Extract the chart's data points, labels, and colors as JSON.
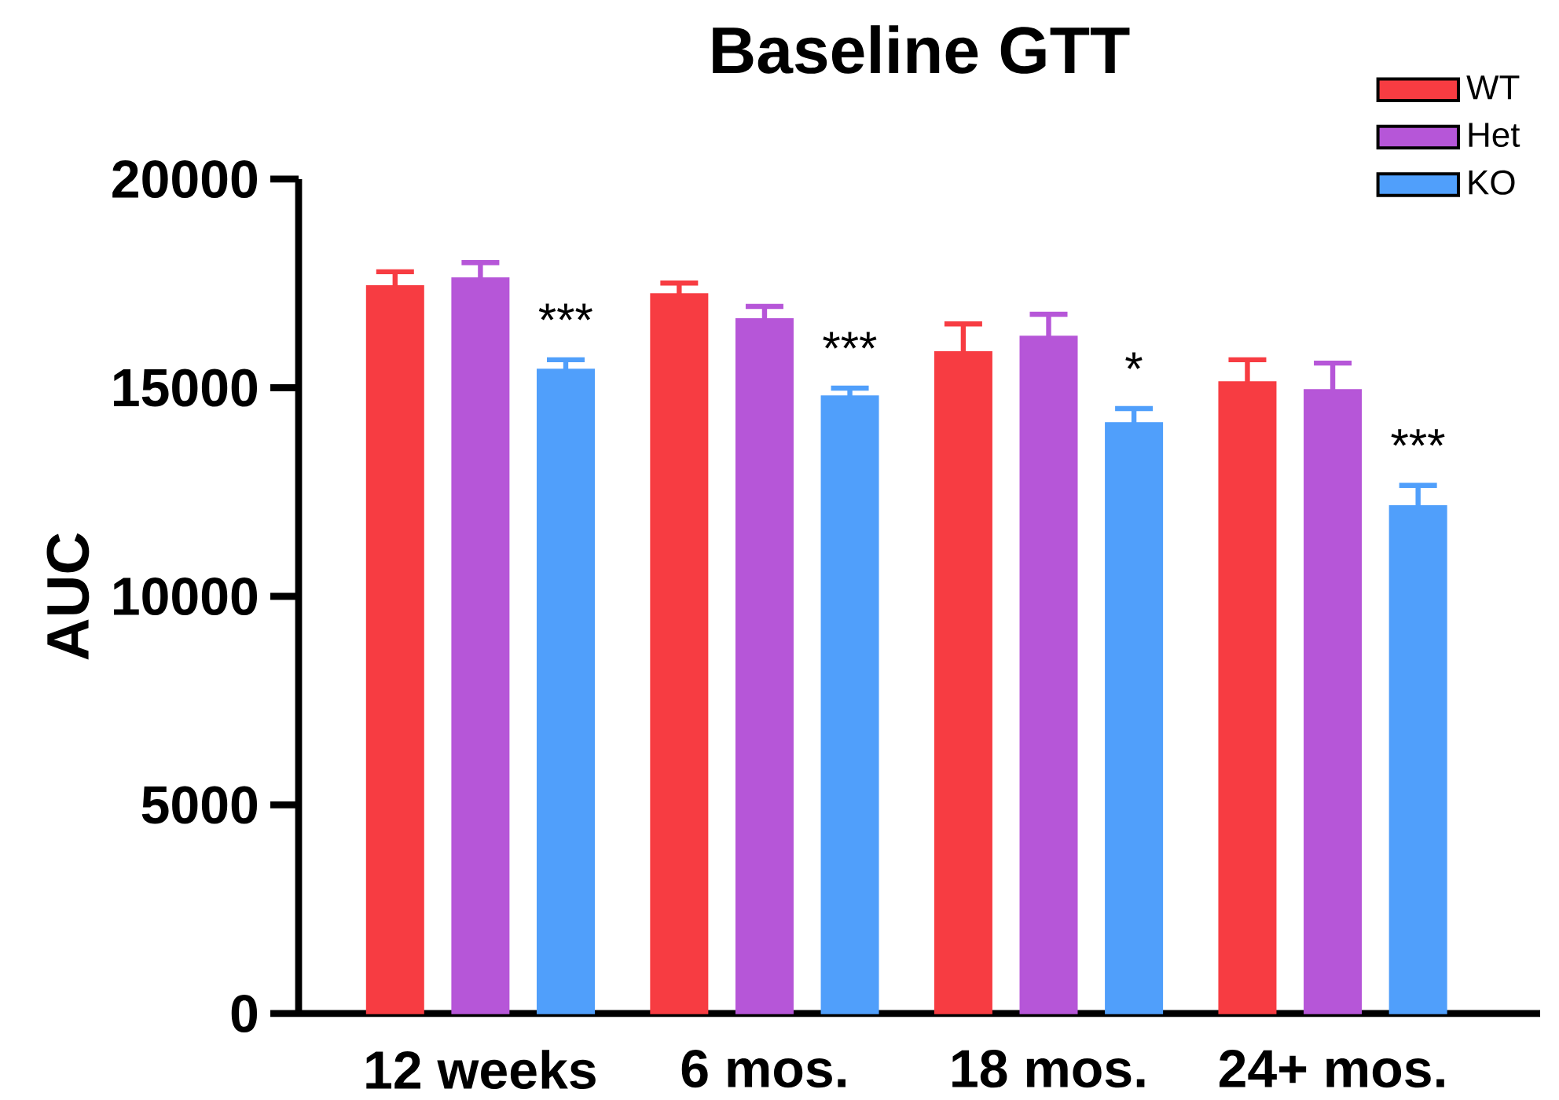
{
  "chart_data": {
    "type": "bar",
    "title": "Baseline GTT",
    "ylabel": "AUC",
    "categories": [
      "12 weeks",
      "6 mos.",
      "18 mos.",
      "24+ mos."
    ],
    "series": [
      {
        "name": "WT",
        "color": "#f73c42",
        "values": [
          17440,
          17250,
          15860,
          15140
        ],
        "errors": [
          [
            17440,
            17780
          ],
          [
            17250,
            17510
          ],
          [
            15860,
            16530
          ],
          [
            15140,
            15670
          ]
        ]
      },
      {
        "name": "Het",
        "color": "#b656d8",
        "values": [
          17630,
          16650,
          16230,
          14950
        ],
        "errors": [
          [
            17630,
            18000
          ],
          [
            16650,
            16950
          ],
          [
            16230,
            16760
          ],
          [
            14950,
            15590
          ]
        ]
      },
      {
        "name": "KO",
        "color": "#509ffb",
        "values": [
          15440,
          14800,
          14160,
          12170
        ],
        "errors": [
          [
            15440,
            15670
          ],
          [
            14800,
            14990
          ],
          [
            14160,
            14500
          ],
          [
            12170,
            12660
          ]
        ]
      }
    ],
    "ylim": [
      0,
      20000
    ],
    "yticks": [
      0,
      5000,
      10000,
      15000,
      20000
    ],
    "legend": "top right",
    "grid": false,
    "annotations": [
      "***",
      "***",
      "*",
      "***"
    ]
  }
}
